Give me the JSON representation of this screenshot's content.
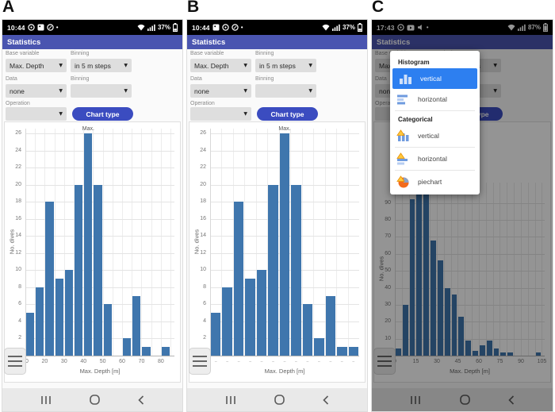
{
  "icons": {
    "dropdown_arrow": "▼",
    "notification_dot": "•"
  },
  "colors": {
    "app_header": "#4a55b0",
    "chart_bar": "#3f76ad",
    "button": "#3b4cc0",
    "popup_selected": "#2d7ff0",
    "statusbar_bg": "#000000",
    "navbar_bg": "#e9e9e9"
  },
  "panelA": {
    "label": "A",
    "statusbar": {
      "time": "10:44",
      "battery": "37%"
    },
    "header": {
      "title": "Statistics"
    },
    "form": {
      "base_variable_label": "Base variable",
      "base_variable_value": "Max. Depth",
      "binning1_label": "Binning",
      "binning1_value": "in 5 m steps",
      "data_label": "Data",
      "data_value": "none",
      "binning2_label": "Binning",
      "binning2_value": "",
      "operation_label": "Operation",
      "operation_value": "",
      "chart_type_button": "Chart type"
    }
  },
  "panelB": {
    "label": "B",
    "statusbar": {
      "time": "10:44",
      "battery": "37%"
    },
    "header": {
      "title": "Statistics"
    },
    "form": {
      "base_variable_label": "Base variable",
      "base_variable_value": "Max. Depth",
      "binning1_label": "Binning",
      "binning1_value": "in 5 m steps",
      "data_label": "Data",
      "data_value": "none",
      "binning2_label": "Binning",
      "binning2_value": "",
      "operation_label": "Operation",
      "operation_value": "",
      "chart_type_button": "Chart type"
    }
  },
  "panelC": {
    "label": "C",
    "statusbar": {
      "time": "17:43",
      "battery": "87%"
    },
    "header": {
      "title": "Statistics"
    },
    "form": {
      "base_variable_label": "Base variable",
      "base_variable_value": "Max. Depth",
      "binning1_label": "Binning",
      "binning1_value": "in 5 m steps",
      "data_label": "Data",
      "data_value": "none",
      "binning2_label": "Binning",
      "binning2_value": "",
      "operation_label": "Operation",
      "operation_value": "",
      "chart_type_button": "Chart type"
    },
    "popup": {
      "section1": "Histogram",
      "items1": [
        {
          "label": "vertical",
          "selected": true
        },
        {
          "label": "horizontal",
          "selected": false
        }
      ],
      "section2": "Categorical",
      "items2": [
        {
          "label": "vertical"
        },
        {
          "label": "horizontal"
        },
        {
          "label": "piechart"
        }
      ]
    }
  },
  "chart_data": [
    {
      "id": "chart-a",
      "type": "bar",
      "layout_mode": "numeric",
      "bin_start": 10,
      "bin_width": 5,
      "values": [
        5,
        8,
        18,
        9,
        10,
        20,
        26,
        20,
        6,
        0,
        2,
        7,
        1,
        0,
        1
      ],
      "x_min": 10,
      "x_max": 87,
      "ylim": [
        0,
        26.6
      ],
      "x_ticks": [
        10,
        20,
        30,
        40,
        50,
        60,
        70,
        80
      ],
      "y_ticks": [
        0,
        2,
        4,
        6,
        8,
        10,
        12,
        14,
        16,
        18,
        20,
        22,
        24,
        26
      ],
      "xlabel": "Max. Depth [m]",
      "ylabel": "No. dives",
      "annotation": {
        "text": "Max.",
        "bin_index": 6
      },
      "bar_color": "#3f76ad"
    },
    {
      "id": "chart-b",
      "type": "bar",
      "layout_mode": "categorical",
      "values": [
        5,
        8,
        18,
        9,
        10,
        20,
        26,
        20,
        6,
        2,
        7,
        1,
        1
      ],
      "x_tick_style": "dashes",
      "ylim": [
        0,
        26.6
      ],
      "y_ticks": [
        0,
        2,
        4,
        6,
        8,
        10,
        12,
        14,
        16,
        18,
        20,
        22,
        24,
        26
      ],
      "xlabel": "Max. Depth [m]",
      "ylabel": "No. dives",
      "annotation": {
        "text": "Max.",
        "bin_index": 6
      },
      "bar_color": "#3f76ad",
      "note": "Empty bins are omitted; x tick labels are too small to read and appear as dashes."
    },
    {
      "id": "chart-c",
      "type": "bar",
      "layout_mode": "numeric",
      "bin_start": 0,
      "bin_width": 5,
      "values": [
        4,
        30,
        92,
        100,
        100,
        68,
        56,
        40,
        36,
        23,
        9,
        3,
        6,
        9,
        4,
        2,
        2,
        0,
        0,
        0,
        2
      ],
      "x_min": 0,
      "x_max": 107,
      "ylim": [
        0,
        102
      ],
      "x_ticks": [
        0,
        15,
        30,
        45,
        60,
        75,
        90,
        105
      ],
      "y_ticks": [
        0,
        10,
        20,
        30,
        40,
        50,
        60,
        70,
        80,
        90
      ],
      "xlabel": "Max. Depth [m]",
      "ylabel": "No. dives",
      "bar_color": "#3f76ad",
      "note": "Bars for 15–20 m and 20–25 m are truncated by the popup; heights estimated."
    }
  ]
}
